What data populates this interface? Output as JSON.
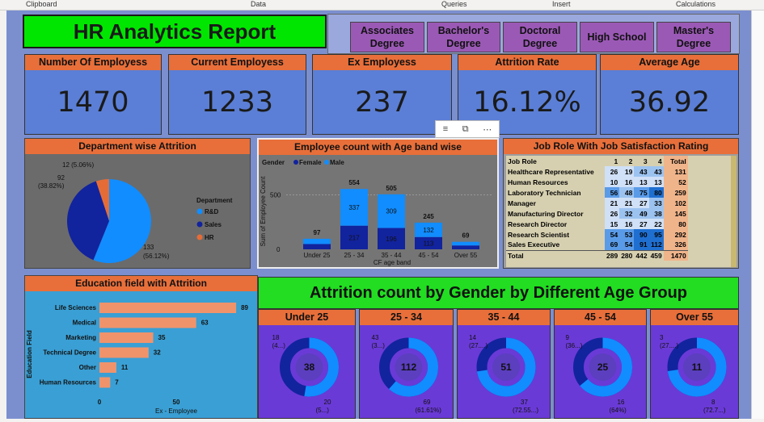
{
  "ribbon": [
    "Clipboard",
    "Data",
    "Queries",
    "Insert",
    "Calculations"
  ],
  "title": "HR Analytics Report",
  "slicer": [
    "Associates Degree",
    "Bachelor's Degree",
    "Doctoral Degree",
    "High School",
    "Master's Degree"
  ],
  "kpis": [
    {
      "label": "Number Of Employess",
      "value": "1470"
    },
    {
      "label": "Current Employess",
      "value": "1233"
    },
    {
      "label": "Ex Employess",
      "value": "237"
    },
    {
      "label": "Attrition Rate",
      "value": "16.12%"
    },
    {
      "label": "Average Age",
      "value": "36.92"
    }
  ],
  "dept": {
    "title": "Department wise Attrition",
    "legend_title": "Department",
    "slices": [
      {
        "name": "R&D",
        "value": 133,
        "label1": "133",
        "label2": "(56.12%)",
        "color": "#118dff"
      },
      {
        "name": "Sales",
        "value": 92,
        "label1": "92",
        "label2": "(38.82%)",
        "color": "#12239e"
      },
      {
        "name": "HR",
        "value": 12,
        "label1": "12 (5.06%)",
        "label2": "",
        "color": "#e66c37"
      }
    ]
  },
  "ageband": {
    "title": "Employee count with Age band wise",
    "legend_title": "Gender",
    "legend": [
      "Female",
      "Male"
    ],
    "colors": {
      "female": "#12239e",
      "male": "#118dff"
    },
    "ylabel": "Sum of Employee Count",
    "xlabel": "CF age band",
    "ytick": "500",
    "ytick0": "0",
    "categories": [
      "Under 25",
      "25 - 34",
      "35 - 44",
      "45 - 54",
      "Over 55"
    ],
    "total": [
      97,
      554,
      505,
      245,
      69
    ],
    "male": [
      null,
      337,
      309,
      132,
      null
    ],
    "female": [
      null,
      217,
      196,
      113,
      null
    ]
  },
  "jobrole": {
    "title": "Job Role With Job Satisfaction Rating",
    "header": [
      "Job Role",
      "1",
      "2",
      "3",
      "4",
      "Total"
    ],
    "rows": [
      [
        "Healthcare Representative",
        "26",
        "19",
        "43",
        "43",
        "131"
      ],
      [
        "Human Resources",
        "10",
        "16",
        "13",
        "13",
        "52"
      ],
      [
        "Laboratory Technician",
        "56",
        "48",
        "75",
        "80",
        "259"
      ],
      [
        "Manager",
        "21",
        "21",
        "27",
        "33",
        "102"
      ],
      [
        "Manufacturing Director",
        "26",
        "32",
        "49",
        "38",
        "145"
      ],
      [
        "Research Director",
        "15",
        "16",
        "27",
        "22",
        "80"
      ],
      [
        "Research Scientist",
        "54",
        "53",
        "90",
        "95",
        "292"
      ],
      [
        "Sales Executive",
        "69",
        "54",
        "91",
        "112",
        "326"
      ]
    ],
    "total": [
      "Total",
      "289",
      "280",
      "442",
      "459",
      "1470"
    ]
  },
  "edu": {
    "title": "Education field with Attrition",
    "ylabel": "Education Field",
    "xlabel": "Ex - Employee",
    "ticks": [
      "0",
      "50"
    ],
    "fields": [
      "Life Sciences",
      "Medical",
      "Marketing",
      "Technical Degree",
      "Other",
      "Human Resources"
    ],
    "values": [
      89,
      63,
      35,
      32,
      11,
      7
    ]
  },
  "gender_title": "Attrition count by Gender by Different Age Group",
  "donuts": [
    {
      "label": "Under 25",
      "center": "38",
      "a": "18",
      "a2": "(4...)",
      "b": "20",
      "b2": "(5...)",
      "frac": 0.526
    },
    {
      "label": "25 - 34",
      "center": "112",
      "a": "43",
      "a2": "(3...)",
      "b": "69",
      "b2": "(61.61%)",
      "frac": 0.616
    },
    {
      "label": "35 - 44",
      "center": "51",
      "a": "14",
      "a2": "(27....)",
      "b": "37",
      "b2": "(72.55...)",
      "frac": 0.725
    },
    {
      "label": "45 - 54",
      "center": "25",
      "a": "9",
      "a2": "(36...)",
      "b": "16",
      "b2": "(64%)",
      "frac": 0.64
    },
    {
      "label": "Over 55",
      "center": "11",
      "a": "3",
      "a2": "(27....)",
      "b": "8",
      "b2": "(72.7...)",
      "frac": 0.727
    }
  ]
}
